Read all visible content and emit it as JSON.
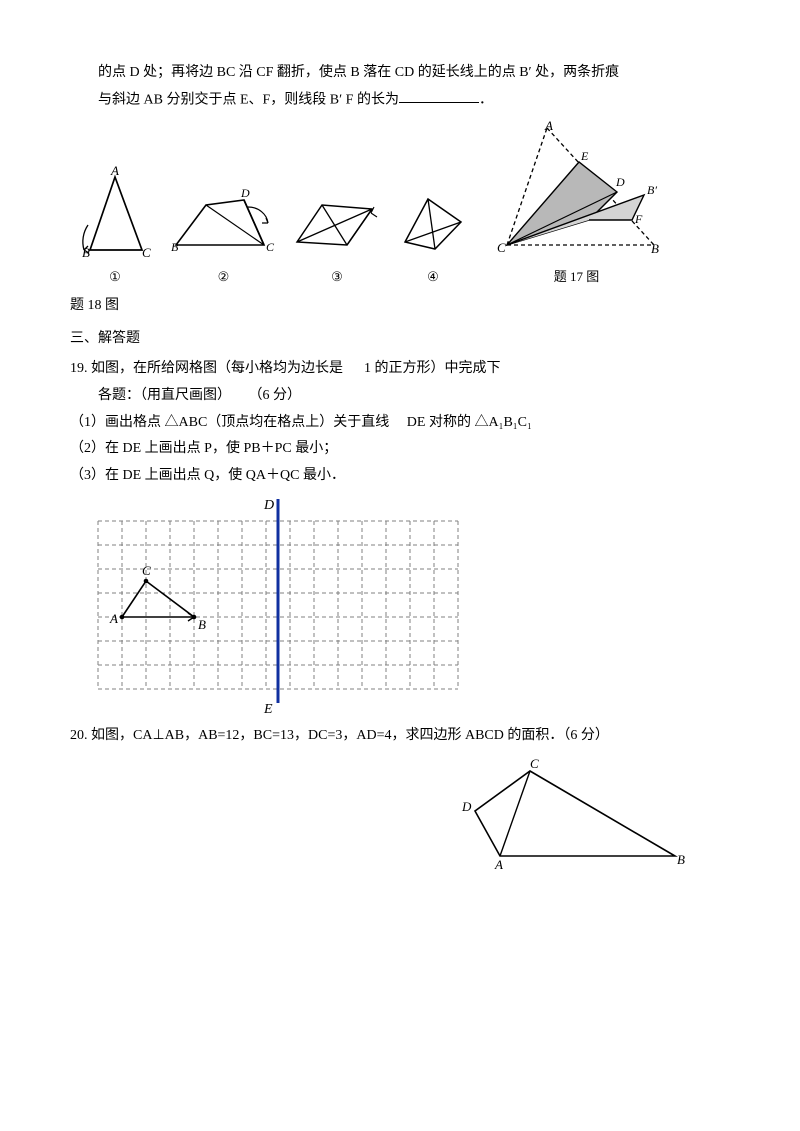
{
  "p1": "的点 D 处；再将边 BC 沿 CF 翻折，使点 B 落在 CD 的延长线上的点 B′ 处，两条折痕",
  "p2_a": "与斜边 AB 分别交于点 E、F，则线段 B′ F 的长为",
  "p2_b": "．",
  "fig18_cap": "题 18 图",
  "fig17_cap": "题 17 图",
  "section3": "三、解答题",
  "q19_a": "19. 如图，在所给网格图（每小格均为边长是",
  "q19_b": "1 的正方形）中完成下",
  "q19_c": "各题：（用直尺画图）",
  "q19_d": "（6 分）",
  "q19_1a": "（1）画出格点 △ABC（顶点均在格点上）关于直线",
  "q19_1b": "DE 对称的 △A₁B₁C₁",
  "q19_2": "（2）在 DE 上画出点 P，使 PB＋PC 最小；",
  "q19_3": "（3）在 DE 上画出点 Q，使 QA＋QC 最小．",
  "q20": "20. 如图，CA⊥AB，AB=12，BC=13，DC=3，AD=4，求四边形 ABCD 的面积．（6 分）",
  "fig18": {
    "circled": [
      "①",
      "②",
      "③",
      "④"
    ],
    "labels": [
      "A",
      "B",
      "C",
      "D"
    ]
  },
  "grid": {
    "cols": 15,
    "rows": 7,
    "cell": 24,
    "line_color": "#808080",
    "axis_color": "#1030a0",
    "D_label": "D",
    "E_label": "E",
    "A_label": "A",
    "B_label": "B",
    "C_label": "C",
    "tri_pts": [
      [
        1,
        4
      ],
      [
        4,
        4
      ],
      [
        2,
        2.5
      ]
    ],
    "axis_x": 7.5
  },
  "q20_diagram": {
    "labels": {
      "A": "A",
      "B": "B",
      "C": "C",
      "D": "D"
    }
  },
  "fill_gray": "#b8b8b8"
}
